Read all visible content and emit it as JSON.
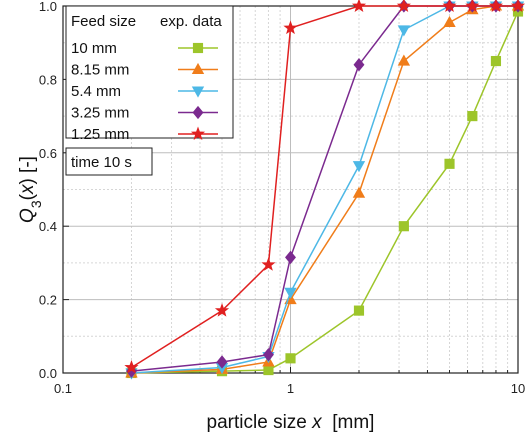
{
  "chart_data": {
    "type": "line",
    "x_scale": "log",
    "xlabel": "particle size x [mm]",
    "ylabel": "Q3(x) [-]",
    "xlim": [
      0.1,
      10
    ],
    "ylim": [
      0,
      1.0
    ],
    "xtick_labels": [
      "0.1",
      "1",
      "10"
    ],
    "ytick_labels": [
      "0.0",
      "0.2",
      "0.4",
      "0.6",
      "0.8",
      "1.0"
    ],
    "grid": true,
    "legend_placement": "top-left",
    "legend_header_left": "Feed size",
    "legend_header_right": "exp. data",
    "annotation": "time 10 s",
    "series": [
      {
        "name": "10 mm",
        "color": "#9dc52a",
        "marker": "square",
        "x": [
          0.2,
          0.5,
          0.8,
          1.0,
          2.0,
          3.15,
          5.0,
          6.3,
          8.0,
          10.0
        ],
        "values": [
          0.0,
          0.005,
          0.008,
          0.04,
          0.17,
          0.4,
          0.57,
          0.7,
          0.85,
          0.985
        ]
      },
      {
        "name": "8.15 mm",
        "color": "#f07d1a",
        "marker": "triangle-up",
        "x": [
          0.2,
          0.5,
          0.8,
          1.0,
          2.0,
          3.15,
          5.0,
          6.3,
          8.0,
          10.0
        ],
        "values": [
          0.0,
          0.01,
          0.03,
          0.2,
          0.49,
          0.85,
          0.955,
          0.99,
          1.0,
          1.0
        ]
      },
      {
        "name": "5.4 mm",
        "color": "#4db8e6",
        "marker": "triangle-down",
        "x": [
          0.2,
          0.5,
          0.8,
          1.0,
          2.0,
          3.15,
          5.0,
          6.3,
          8.0,
          10.0
        ],
        "values": [
          0.0,
          0.015,
          0.045,
          0.22,
          0.565,
          0.935,
          1.0,
          1.0,
          1.0,
          1.0
        ]
      },
      {
        "name": "3.25 mm",
        "color": "#7b2a8f",
        "marker": "diamond",
        "x": [
          0.2,
          0.5,
          0.8,
          1.0,
          2.0,
          3.15,
          5.0,
          6.3,
          8.0,
          10.0
        ],
        "values": [
          0.005,
          0.03,
          0.05,
          0.315,
          0.84,
          1.0,
          1.0,
          1.0,
          1.0,
          1.0
        ]
      },
      {
        "name": "1.25 mm",
        "color": "#e02020",
        "marker": "star",
        "x": [
          0.2,
          0.5,
          0.8,
          1.0,
          2.0,
          3.15,
          5.0,
          6.3,
          8.0,
          10.0
        ],
        "values": [
          0.015,
          0.17,
          0.295,
          0.94,
          1.0,
          1.0,
          1.0,
          1.0,
          1.0,
          1.0
        ]
      }
    ]
  }
}
